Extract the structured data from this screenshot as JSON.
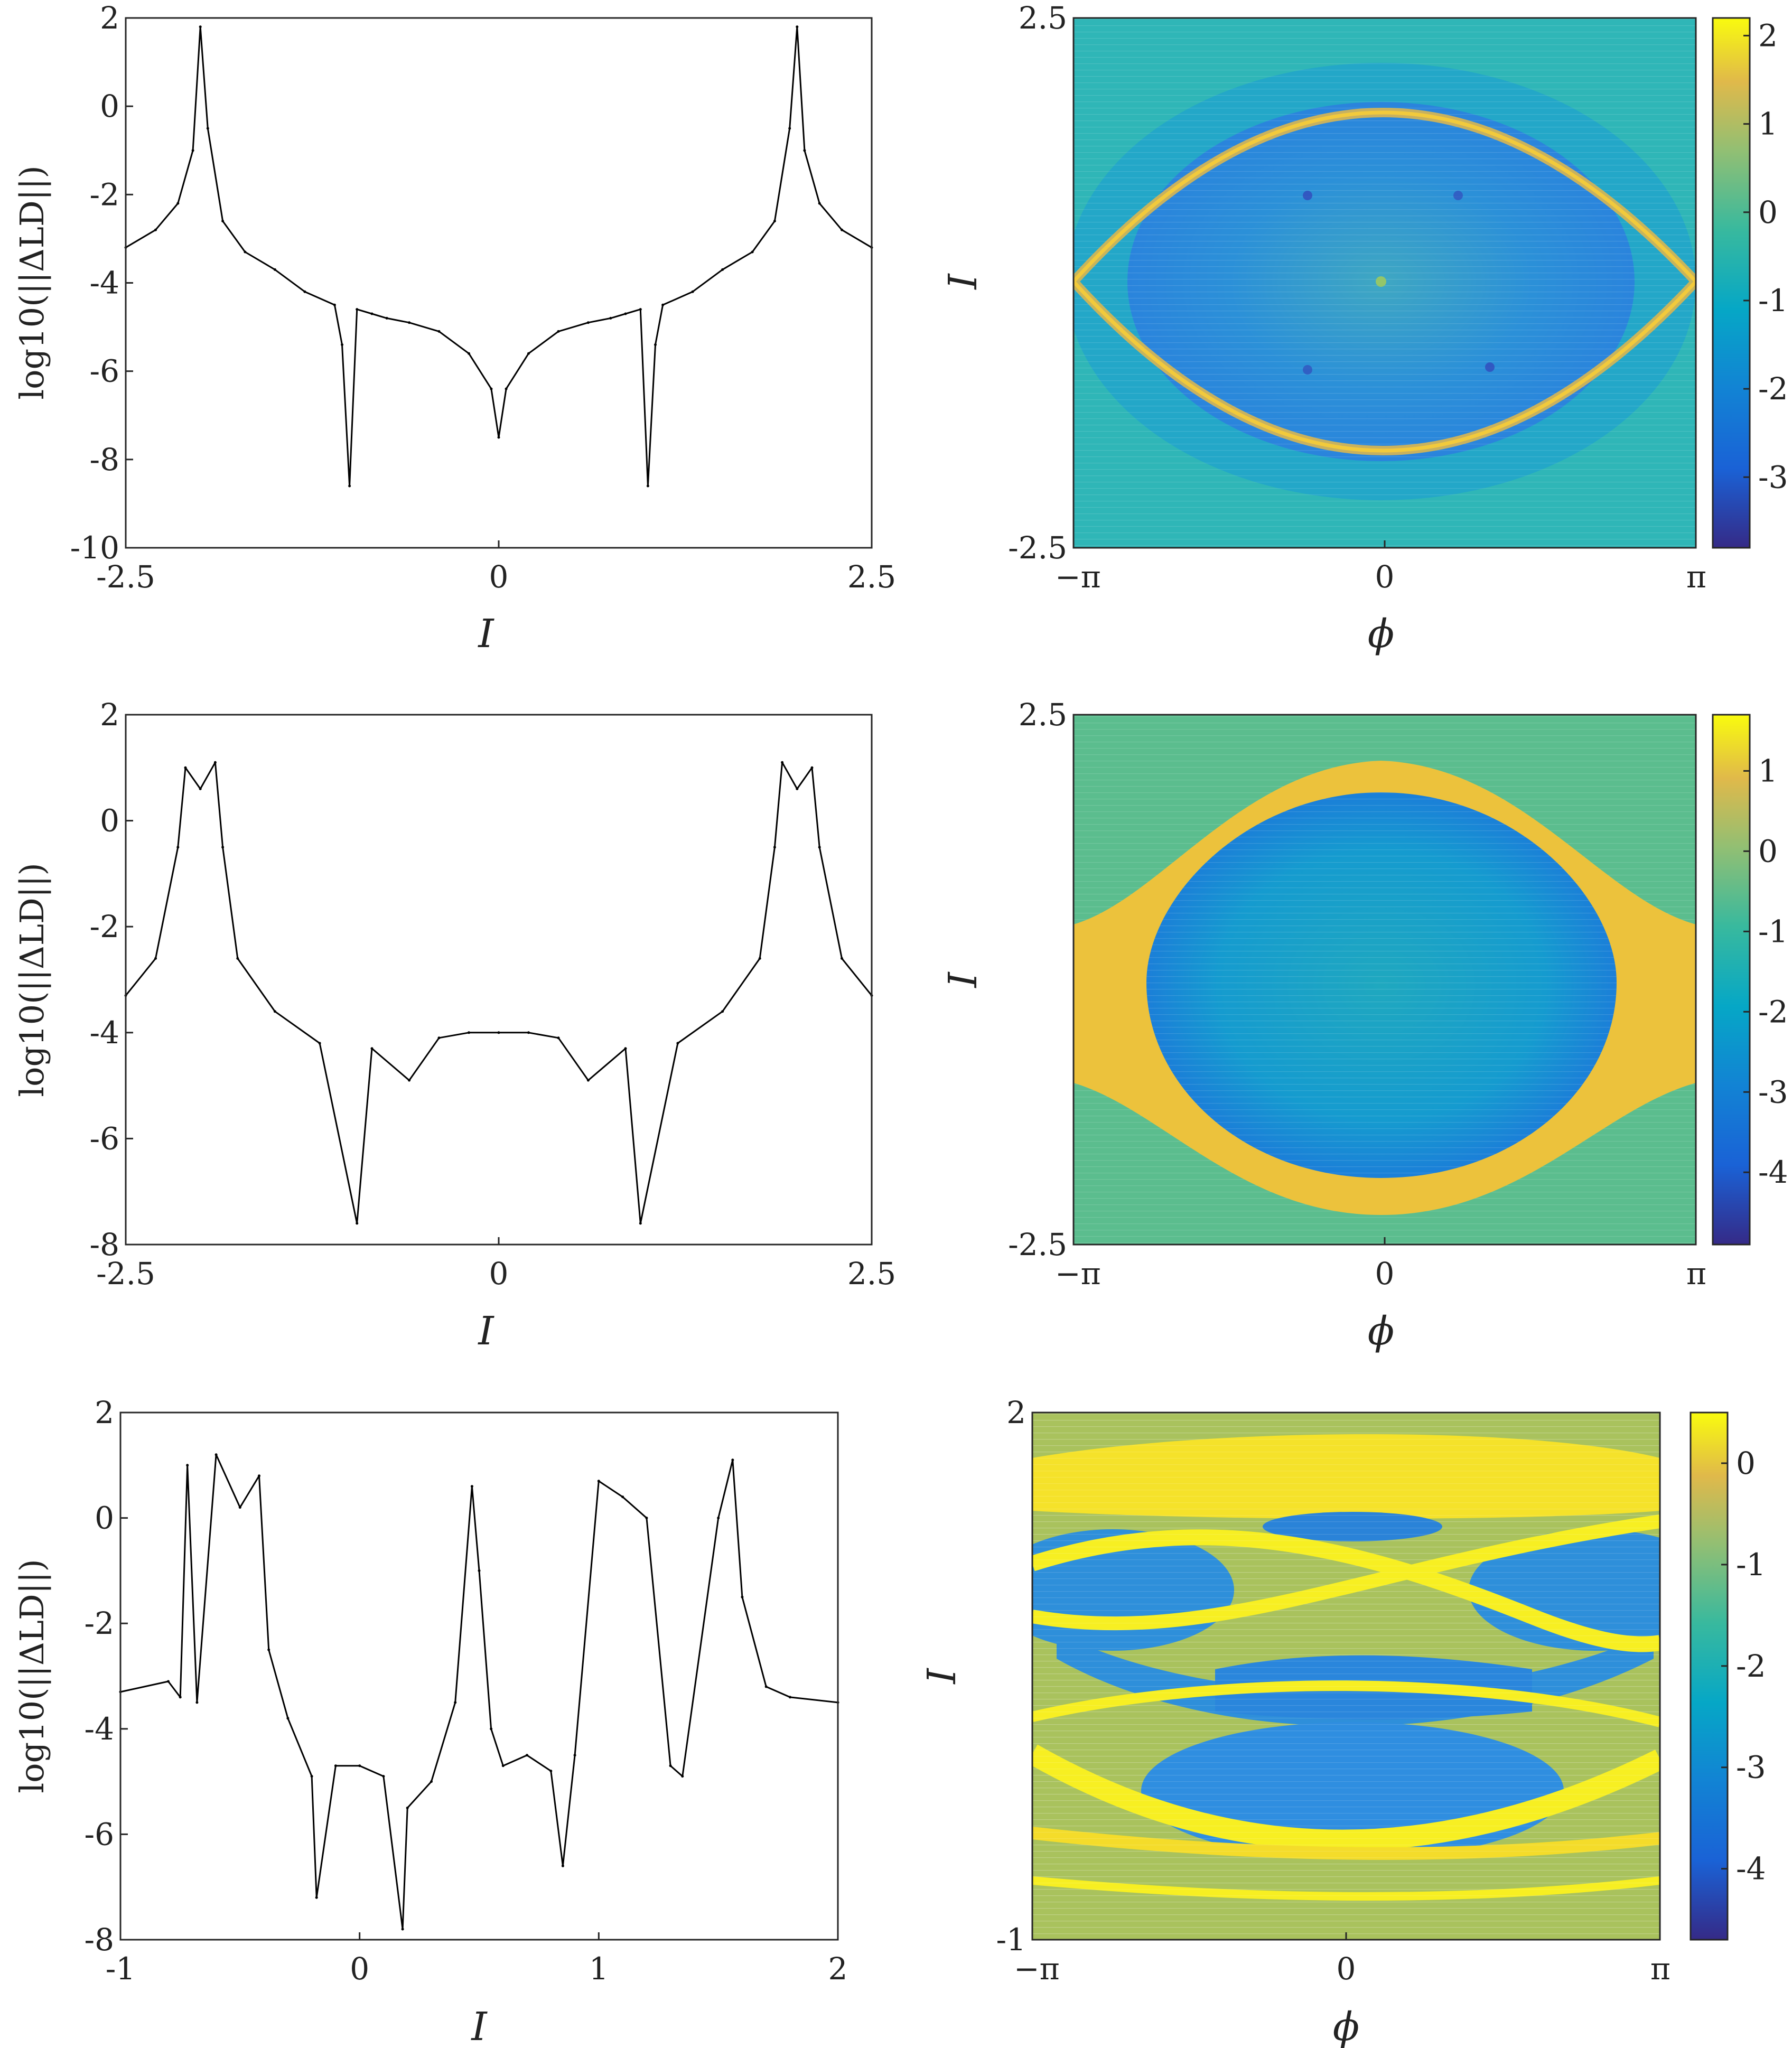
{
  "chart_data": [
    {
      "type": "line",
      "xlabel": "I",
      "ylabel": "log10(||ΔLD||)",
      "xlim": [
        -2.5,
        2.5
      ],
      "ylim": [
        -10,
        2
      ],
      "xticks": [
        "-2.5",
        "0",
        "2.5"
      ],
      "yticks": [
        "2",
        "0",
        "-2",
        "-4",
        "-6",
        "-8",
        "-10"
      ],
      "color": "#000000",
      "grid": false,
      "series": [
        {
          "x": [
            -2.5,
            -2.3,
            -2.15,
            -2.05,
            -2.0,
            -1.95,
            -1.85,
            -1.7,
            -1.5,
            -1.3,
            -1.1,
            -1.05,
            -1.0,
            -0.95,
            -0.85,
            -0.75,
            -0.6,
            -0.4,
            -0.2,
            -0.05,
            0.0,
            0.05,
            0.2,
            0.4,
            0.6,
            0.75,
            0.85,
            0.95,
            1.0,
            1.05,
            1.1,
            1.3,
            1.5,
            1.7,
            1.85,
            1.95,
            2.0,
            2.05,
            2.15,
            2.3,
            2.5
          ],
          "y": [
            -3.2,
            -2.8,
            -2.2,
            -1.0,
            1.8,
            -0.5,
            -2.6,
            -3.3,
            -3.7,
            -4.2,
            -4.5,
            -5.4,
            -8.6,
            -4.6,
            -4.7,
            -4.8,
            -4.9,
            -5.1,
            -5.6,
            -6.4,
            -7.5,
            -6.4,
            -5.6,
            -5.1,
            -4.9,
            -4.8,
            -4.7,
            -4.6,
            -8.6,
            -5.4,
            -4.5,
            -4.2,
            -3.7,
            -3.3,
            -2.6,
            -0.5,
            1.8,
            -1.0,
            -2.2,
            -2.8,
            -3.2
          ]
        }
      ]
    },
    {
      "type": "heatmap",
      "xlabel": "ϕ",
      "ylabel": "I",
      "xlim": [
        "−π",
        "π"
      ],
      "ylim": [
        -2.5,
        2.5
      ],
      "xticks": [
        "−π",
        "0",
        "π"
      ],
      "yticks": [
        "2.5",
        "-2.5"
      ],
      "colorbar": {
        "min": -3.8,
        "max": 2.2,
        "ticks": [
          "2",
          "1",
          "0",
          "-1",
          "-2",
          "-3"
        ]
      }
    },
    {
      "type": "line",
      "xlabel": "I",
      "ylabel": "log10(||ΔLD||)",
      "xlim": [
        -2.5,
        2.5
      ],
      "ylim": [
        -8,
        2
      ],
      "xticks": [
        "-2.5",
        "0",
        "2.5"
      ],
      "yticks": [
        "2",
        "0",
        "-2",
        "-4",
        "-6",
        "-8"
      ],
      "color": "#000000",
      "grid": false,
      "series": [
        {
          "x": [
            -2.5,
            -2.3,
            -2.15,
            -2.1,
            -2.0,
            -1.9,
            -1.85,
            -1.75,
            -1.5,
            -1.2,
            -0.95,
            -0.85,
            -0.6,
            -0.4,
            -0.2,
            0.0,
            0.2,
            0.4,
            0.6,
            0.85,
            0.95,
            1.2,
            1.5,
            1.75,
            1.85,
            1.9,
            2.0,
            2.1,
            2.15,
            2.3,
            2.5
          ],
          "y": [
            -3.3,
            -2.6,
            -0.5,
            1.0,
            0.6,
            1.1,
            -0.5,
            -2.6,
            -3.6,
            -4.2,
            -7.6,
            -4.3,
            -4.9,
            -4.1,
            -4.0,
            -4.0,
            -4.0,
            -4.1,
            -4.9,
            -4.3,
            -7.6,
            -4.2,
            -3.6,
            -2.6,
            -0.5,
            1.1,
            0.6,
            1.0,
            -0.5,
            -2.6,
            -3.3
          ]
        }
      ]
    },
    {
      "type": "heatmap",
      "xlabel": "ϕ",
      "ylabel": "I",
      "xlim": [
        "−π",
        "π"
      ],
      "ylim": [
        -2.5,
        2.5
      ],
      "xticks": [
        "−π",
        "0",
        "π"
      ],
      "yticks": [
        "2.5",
        "-2.5"
      ],
      "colorbar": {
        "min": -4.9,
        "max": 1.7,
        "ticks": [
          "1",
          "0",
          "-1",
          "-2",
          "-3",
          "-4"
        ]
      }
    },
    {
      "type": "line",
      "xlabel": "I",
      "ylabel": "log10(||ΔLD||)",
      "xlim": [
        -1,
        2
      ],
      "ylim": [
        -8,
        2
      ],
      "xticks": [
        "-1",
        "0",
        "1",
        "2"
      ],
      "yticks": [
        "2",
        "0",
        "-2",
        "-4",
        "-6",
        "-8"
      ],
      "color": "#000000",
      "grid": false,
      "series": [
        {
          "x": [
            -1.0,
            -0.8,
            -0.75,
            -0.72,
            -0.68,
            -0.6,
            -0.5,
            -0.42,
            -0.38,
            -0.3,
            -0.2,
            -0.18,
            -0.1,
            0.0,
            0.1,
            0.18,
            0.2,
            0.3,
            0.4,
            0.47,
            0.5,
            0.55,
            0.6,
            0.7,
            0.8,
            0.85,
            0.9,
            1.0,
            1.1,
            1.2,
            1.3,
            1.35,
            1.5,
            1.56,
            1.6,
            1.7,
            1.8,
            2.0
          ],
          "y": [
            -3.3,
            -3.1,
            -3.4,
            1.0,
            -3.5,
            1.2,
            0.2,
            0.8,
            -2.5,
            -3.8,
            -4.9,
            -7.2,
            -4.7,
            -4.7,
            -4.9,
            -7.8,
            -5.5,
            -5.0,
            -3.5,
            0.6,
            -1.0,
            -4.0,
            -4.7,
            -4.5,
            -4.8,
            -6.6,
            -4.5,
            0.7,
            0.4,
            0.0,
            -4.7,
            -4.9,
            0.0,
            1.1,
            -1.5,
            -3.2,
            -3.4,
            -3.5
          ]
        }
      ]
    },
    {
      "type": "heatmap",
      "xlabel": "ϕ",
      "ylabel": "I",
      "xlim": [
        "−π",
        "π"
      ],
      "ylim": [
        -1,
        2
      ],
      "xticks": [
        "−π",
        "0",
        "π"
      ],
      "yticks": [
        "2",
        "-1"
      ],
      "colorbar": {
        "min": -4.7,
        "max": 0.5,
        "ticks": [
          "0",
          "-1",
          "-2",
          "-3",
          "-4"
        ]
      }
    }
  ]
}
